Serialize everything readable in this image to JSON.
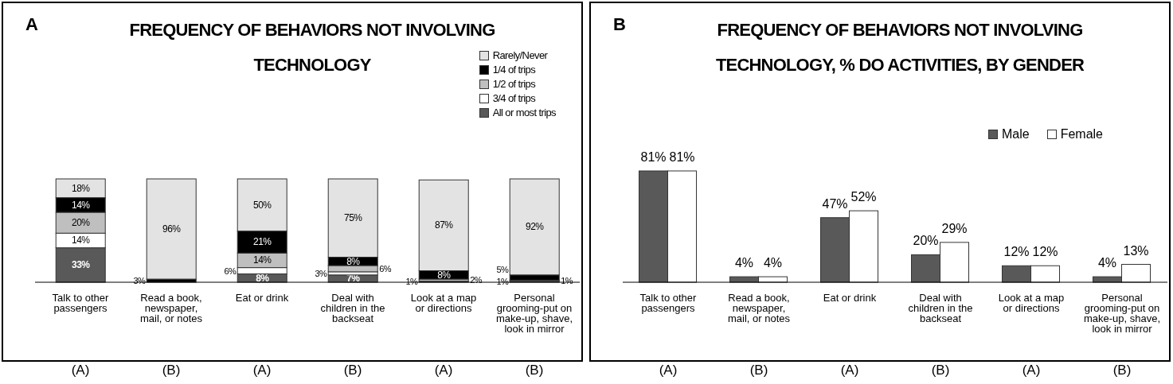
{
  "chart_data": [
    {
      "type": "bar",
      "stacked": true,
      "title": "FREQUENCY OF BEHAVIORS NOT INVOLVING TECHNOLOGY",
      "categories": [
        "Talk to other passengers",
        "Read a book, newspaper, mail, or notes",
        "Eat or drink",
        "Deal with children in the backseat",
        "Look at a map or directions",
        "Personal grooming-put on make-up, shave, look in mirror"
      ],
      "series": [
        {
          "name": "All or most trips",
          "color": "#595959",
          "values": [
            33,
            0,
            8,
            7,
            1,
            1
          ],
          "value_labels": [
            "33%",
            null,
            "8%",
            "7%",
            "1%",
            "1%"
          ]
        },
        {
          "name": "3/4 of trips",
          "color": "#ffffff",
          "values": [
            14,
            null,
            6,
            3,
            0,
            0
          ],
          "value_labels": [
            "14%",
            null,
            "6%",
            "3%",
            null,
            null
          ]
        },
        {
          "name": "1/2 of trips",
          "color": "#bfbfbf",
          "values": [
            20,
            0,
            14,
            6,
            2,
            1
          ],
          "value_labels": [
            "20%",
            null,
            "14%",
            "6%",
            "2%",
            "1%"
          ]
        },
        {
          "name": "1/4 of trips",
          "color": "#000000",
          "values": [
            14,
            3,
            21,
            8,
            8,
            5
          ],
          "value_labels": [
            "14%",
            "3%",
            "21%",
            "8%",
            "8%",
            "5%"
          ]
        },
        {
          "name": "Rarely/Never",
          "color": "#e3e3e3",
          "values": [
            18,
            96,
            50,
            75,
            87,
            92
          ],
          "value_labels": [
            "18%",
            "96%",
            "50%",
            "75%",
            "87%",
            "92%"
          ]
        }
      ],
      "legend": "top right",
      "annotations": [
        "A",
        "(A)",
        "(B)",
        "(A)",
        "(B)",
        "(A)",
        "(B)"
      ]
    },
    {
      "type": "bar",
      "title": "FREQUENCY OF BEHAVIORS NOT INVOLVING TECHNOLOGY, % DO ACTIVITIES, BY GENDER",
      "categories": [
        "Talk to other passengers",
        "Read a book, newspaper, mail, or notes",
        "Eat or drink",
        "Deal with children in the backseat",
        "Look at a map or directions",
        "Personal grooming-put on make-up, shave, look in mirror"
      ],
      "series": [
        {
          "name": "Male",
          "color": "#595959",
          "values": [
            81,
            4,
            47,
            20,
            12,
            4
          ],
          "value_labels": [
            "81%",
            "4%",
            "47%",
            "20%",
            "12%",
            "4%"
          ]
        },
        {
          "name": "Female",
          "color": "#ffffff",
          "values": [
            81,
            4,
            52,
            29,
            12,
            13
          ],
          "value_labels": [
            "81%",
            "4%",
            "52%",
            "29%",
            "12%",
            "13%"
          ]
        }
      ],
      "legend": "top right",
      "annotations": [
        "B",
        "(A)",
        "(B)",
        "(A)",
        "(B)",
        "(A)",
        "(B)"
      ]
    }
  ]
}
